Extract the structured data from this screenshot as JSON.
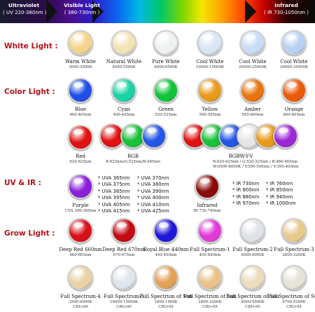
{
  "header": {
    "uv_title": "Ultraviolet",
    "uv_range": "( UV 220-380nm )",
    "visible_title": "Visible Light",
    "visible_range": "( 380-730nm )",
    "ir_title": "Infrared",
    "ir_range": "( IR 730-1050nm )"
  },
  "sections": {
    "white": "White Light :",
    "color": "Color Light :",
    "uvir": "UV & IR :",
    "grow": "Grow Light :"
  },
  "white_leds": [
    {
      "name": "Warm White",
      "spec": "3000-3500K",
      "color": "#f4d48a"
    },
    {
      "name": "Natural White",
      "spec": "4000-5500K",
      "color": "#f3e4b6"
    },
    {
      "name": "Pure White",
      "spec": "6000-6500K",
      "color": "#eef0f2"
    },
    {
      "name": "Cool White",
      "spec": "10000-15000K",
      "color": "#d9e6f6"
    },
    {
      "name": "Cool White",
      "spec": "20000-25000K",
      "color": "#c8dcf6"
    },
    {
      "name": "Cool White",
      "spec": "30000-35000K",
      "color": "#b9d1f4"
    }
  ],
  "color_leds": [
    {
      "name": "Blue",
      "spec": "460-465nm",
      "color": "#1f4ee8"
    },
    {
      "name": "Cyan",
      "spec": "490-495nm",
      "color": "#19d2a6"
    },
    {
      "name": "Green",
      "spec": "520-525nm",
      "color": "#10c43a"
    },
    {
      "name": "Yellow",
      "spec": "590-595nm",
      "color": "#e89a1a"
    },
    {
      "name": "Amber",
      "spec": "595-600nm",
      "color": "#e7740e"
    },
    {
      "name": "Orange",
      "spec": "600-605nm",
      "color": "#ea5a08"
    }
  ],
  "multi_leds": {
    "red": {
      "name": "Red",
      "spec": "620-625nm",
      "color": "#e01212"
    },
    "rgb": {
      "name": "RGB",
      "spec": "R:625nm/G:525nm/B:465nm",
      "colors": [
        "#e01212",
        "#18c23a",
        "#2456e6"
      ]
    },
    "rgbwyv": {
      "name": "RGBW-Y-V",
      "spec1": "R:620-625nm / G:520-525nm / B:460-465nm",
      "spec2": "W:6000-8000K / Y:590-595nm / V:395-400nm",
      "colors": [
        "#e01212",
        "#18c23a",
        "#2456e6",
        "#e6e6e6",
        "#e89a1a",
        "#9b27d6"
      ]
    }
  },
  "uv_led": {
    "name": "Purple",
    "spec": "UVA 390-395nm",
    "color": "#8a1fd8"
  },
  "uv_list_1": [
    "* UVA 365nm",
    "* UVA 375nm",
    "* UVA 385nm",
    "* UVA 395nm",
    "* UVA 405nm",
    "* UVA 415nm"
  ],
  "uv_list_2": [
    "* UVA 370nm",
    "* UVA 380nm",
    "* UVA 390nm",
    "* UVA 400nm",
    "* UVA 410nm",
    "* UVA 425nm"
  ],
  "ir_led": {
    "name": "Infrared",
    "spec": "IR 730-740nm",
    "color": "#8a0a08"
  },
  "ir_list_1": [
    "* IR 730nm",
    "* IR 800nm",
    "* IR 880nm",
    "* IR 970nm"
  ],
  "ir_list_2": [
    "* IR 760nm",
    "* IR 850nm",
    "* IR 940nm",
    "* IR 1000nm"
  ],
  "grow_leds_1": [
    {
      "name": "Deep Red 660nm",
      "spec": "660-665nm",
      "color": "#d8101a"
    },
    {
      "name": "Deep Red 670nm",
      "spec": "670-675nm",
      "color": "#c40a12"
    },
    {
      "name": "Royal Blue 440nm",
      "spec": "440-450nm",
      "color": "#2018d8"
    },
    {
      "name": "Full Spectrum-1",
      "spec": "400-840nm",
      "color": "#e23ad6"
    },
    {
      "name": "Full Spectrum-2",
      "spec": "6000-8000K",
      "color": "#dfe3e8"
    },
    {
      "name": "Full Spectrum-3",
      "spec": "2800-3200K",
      "color": "#e7c98c"
    }
  ],
  "grow_leds_2": [
    {
      "name": "Full Spectrum-4",
      "spec": "3500-4000K",
      "spec2": "CRI>90",
      "color": "#e9d2a4"
    },
    {
      "name": "Full Spectrum-5",
      "spec": "10000-15000K",
      "spec2": "CRI>90",
      "color": "#dfe5ee"
    },
    {
      "name": "Full Spectrum of Sun",
      "spec": "1800-1900K",
      "spec2": "CRI>95",
      "color": "#e3a058"
    },
    {
      "name": "Full Spectrum of Sun",
      "spec": "2800-3200K",
      "spec2": "CRI>95",
      "color": "#e8c28a"
    },
    {
      "name": "Full Spectrum of Sun",
      "spec": "4000-4500K",
      "spec2": "CRI>95",
      "color": "#ecdcbc"
    },
    {
      "name": "Full Spectrum of Sun",
      "spec": "4700-5200K",
      "spec2": "CRI>95",
      "color": "#e6e2d8"
    }
  ]
}
